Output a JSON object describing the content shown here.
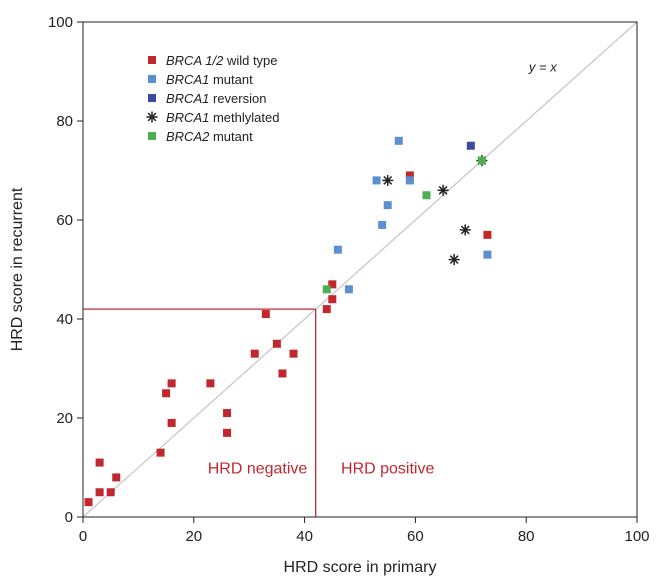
{
  "chart_data": {
    "type": "scatter",
    "title": "",
    "xlabel": "HRD score in primary",
    "ylabel": "HRD score in recurrent",
    "xlim": [
      0,
      100
    ],
    "ylim": [
      0,
      100
    ],
    "xticks": [
      0,
      20,
      40,
      60,
      80,
      100
    ],
    "yticks": [
      0,
      20,
      40,
      60,
      80,
      100
    ],
    "grid": false,
    "legend_position": "top-left",
    "identity_line": {
      "label": "y = x",
      "color": "#c8c8c8"
    },
    "threshold": {
      "value": 42,
      "color": "#c0282e",
      "negative_label": "HRD negative",
      "positive_label": "HRD positive"
    },
    "series": [
      {
        "name_italic": "BRCA 1/2",
        "name_rest": " wild type",
        "marker": "square",
        "color": "#c0282e",
        "points": [
          [
            1,
            3
          ],
          [
            3,
            5
          ],
          [
            3,
            11
          ],
          [
            5,
            5
          ],
          [
            6,
            8
          ],
          [
            14,
            13
          ],
          [
            15,
            25
          ],
          [
            16,
            27
          ],
          [
            16,
            19
          ],
          [
            23,
            27
          ],
          [
            26,
            21
          ],
          [
            26,
            17
          ],
          [
            31,
            33
          ],
          [
            33,
            41
          ],
          [
            35,
            35
          ],
          [
            36,
            29
          ],
          [
            38,
            33
          ],
          [
            44,
            42
          ],
          [
            45,
            44
          ],
          [
            45,
            47
          ],
          [
            59,
            69
          ],
          [
            73,
            57
          ]
        ]
      },
      {
        "name_italic": "BRCA1",
        "name_rest": " mutant",
        "marker": "square",
        "color": "#5b8fcf",
        "points": [
          [
            46,
            54
          ],
          [
            48,
            46
          ],
          [
            53,
            68
          ],
          [
            54,
            59
          ],
          [
            55,
            63
          ],
          [
            57,
            76
          ],
          [
            59,
            68
          ],
          [
            73,
            53
          ]
        ]
      },
      {
        "name_italic": "BRCA1",
        "name_rest": " reversion",
        "marker": "square",
        "color": "#3a4ba0",
        "points": [
          [
            70,
            75
          ]
        ]
      },
      {
        "name_italic": "BRCA1",
        "name_rest": " methlylated",
        "marker": "asterisk",
        "color": "#222222",
        "points": [
          [
            55,
            68
          ],
          [
            65,
            66
          ],
          [
            67,
            52
          ],
          [
            69,
            58
          ],
          [
            72,
            72
          ]
        ]
      },
      {
        "name_italic": "BRCA2",
        "name_rest": " mutant",
        "marker": "square",
        "color": "#4caf50",
        "points": [
          [
            44,
            46
          ],
          [
            62,
            65
          ],
          [
            72,
            72
          ]
        ]
      }
    ]
  }
}
